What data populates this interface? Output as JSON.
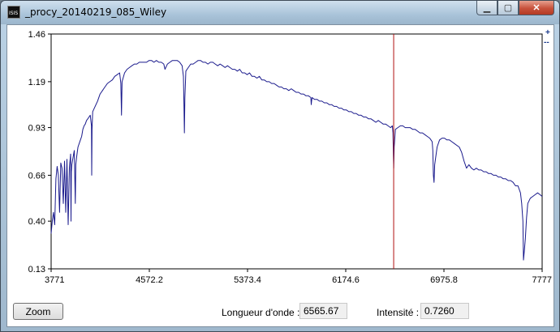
{
  "window": {
    "title": "_procy_20140219_085_Wiley",
    "icon_text": "ISIS",
    "icon": "isis-app-icon",
    "minimize_glyph": "▁",
    "maximize_glyph": "▢",
    "close_glyph": "✕"
  },
  "corner_buttons": {
    "plus": "+",
    "minus": "--"
  },
  "chart_data": {
    "type": "line",
    "xlabel": "",
    "ylabel": "",
    "xlim": [
      3771,
      7777
    ],
    "ylim": [
      0.13,
      1.46
    ],
    "x_ticks": [
      "3771",
      "4572.2",
      "5373.4",
      "6174.6",
      "6975.8",
      "7777"
    ],
    "y_ticks": [
      "1.46",
      "1.19",
      "0.93",
      "0.66",
      "0.40",
      "0.13"
    ],
    "series": [
      {
        "color": "#1a1a8c",
        "x": [
          3771,
          3780,
          3790,
          3800,
          3810,
          3820,
          3830,
          3840,
          3850,
          3860,
          3870,
          3880,
          3890,
          3900,
          3910,
          3920,
          3930,
          3933,
          3936,
          3940,
          3950,
          3960,
          3965,
          3968,
          3972,
          3980,
          3990,
          4000,
          4010,
          4020,
          4030,
          4040,
          4050,
          4060,
          4070,
          4080,
          4090,
          4100,
          4102,
          4105,
          4110,
          4130,
          4150,
          4170,
          4190,
          4210,
          4230,
          4250,
          4270,
          4290,
          4310,
          4330,
          4340,
          4345,
          4350,
          4370,
          4390,
          4410,
          4430,
          4450,
          4470,
          4490,
          4510,
          4530,
          4550,
          4570,
          4590,
          4610,
          4630,
          4650,
          4670,
          4690,
          4700,
          4720,
          4740,
          4760,
          4780,
          4800,
          4820,
          4840,
          4850,
          4855,
          4858,
          4862,
          4870,
          4890,
          4910,
          4930,
          4950,
          4970,
          4990,
          5010,
          5030,
          5050,
          5070,
          5090,
          5110,
          5130,
          5150,
          5170,
          5190,
          5210,
          5230,
          5250,
          5270,
          5290,
          5310,
          5330,
          5350,
          5370,
          5390,
          5410,
          5430,
          5450,
          5470,
          5490,
          5510,
          5530,
          5550,
          5570,
          5590,
          5610,
          5630,
          5650,
          5670,
          5690,
          5710,
          5730,
          5750,
          5770,
          5790,
          5810,
          5830,
          5850,
          5870,
          5890,
          5893,
          5896,
          5900,
          5920,
          5940,
          5960,
          5980,
          6000,
          6020,
          6040,
          6060,
          6080,
          6100,
          6120,
          6140,
          6160,
          6180,
          6200,
          6220,
          6240,
          6260,
          6280,
          6300,
          6320,
          6340,
          6360,
          6380,
          6400,
          6420,
          6440,
          6460,
          6480,
          6500,
          6520,
          6540,
          6555,
          6560,
          6563,
          6566,
          6570,
          6580,
          6600,
          6620,
          6640,
          6660,
          6680,
          6700,
          6720,
          6740,
          6760,
          6780,
          6800,
          6820,
          6840,
          6860,
          6870,
          6880,
          6885,
          6890,
          6895,
          6900,
          6920,
          6940,
          6960,
          6980,
          7000,
          7020,
          7040,
          7060,
          7080,
          7100,
          7120,
          7140,
          7160,
          7180,
          7200,
          7220,
          7240,
          7260,
          7280,
          7300,
          7320,
          7340,
          7360,
          7380,
          7400,
          7420,
          7440,
          7460,
          7480,
          7500,
          7520,
          7540,
          7560,
          7580,
          7600,
          7610,
          7620,
          7625,
          7630,
          7640,
          7650,
          7660,
          7680,
          7700,
          7720,
          7740,
          7760,
          7777
        ],
        "y": [
          0.33,
          0.4,
          0.45,
          0.38,
          0.64,
          0.71,
          0.66,
          0.45,
          0.73,
          0.7,
          0.5,
          0.74,
          0.45,
          0.75,
          0.38,
          0.7,
          0.78,
          0.4,
          0.68,
          0.72,
          0.76,
          0.8,
          0.62,
          0.5,
          0.72,
          0.77,
          0.82,
          0.84,
          0.86,
          0.88,
          0.92,
          0.94,
          0.95,
          0.97,
          0.98,
          0.99,
          1.0,
          0.94,
          0.66,
          0.92,
          1.02,
          1.05,
          1.08,
          1.12,
          1.14,
          1.16,
          1.18,
          1.19,
          1.2,
          1.22,
          1.23,
          1.24,
          1.18,
          1.0,
          1.19,
          1.24,
          1.26,
          1.27,
          1.28,
          1.29,
          1.29,
          1.3,
          1.3,
          1.3,
          1.3,
          1.31,
          1.31,
          1.3,
          1.31,
          1.3,
          1.3,
          1.29,
          1.26,
          1.29,
          1.3,
          1.31,
          1.31,
          1.31,
          1.3,
          1.28,
          1.22,
          1.05,
          0.9,
          1.1,
          1.25,
          1.27,
          1.29,
          1.29,
          1.3,
          1.31,
          1.31,
          1.3,
          1.3,
          1.29,
          1.3,
          1.3,
          1.29,
          1.28,
          1.29,
          1.28,
          1.27,
          1.28,
          1.27,
          1.26,
          1.26,
          1.25,
          1.26,
          1.24,
          1.24,
          1.23,
          1.24,
          1.22,
          1.22,
          1.21,
          1.22,
          1.2,
          1.2,
          1.19,
          1.19,
          1.18,
          1.18,
          1.17,
          1.16,
          1.16,
          1.15,
          1.15,
          1.14,
          1.15,
          1.14,
          1.13,
          1.13,
          1.12,
          1.12,
          1.11,
          1.11,
          1.1,
          1.06,
          1.08,
          1.1,
          1.09,
          1.09,
          1.08,
          1.08,
          1.07,
          1.07,
          1.06,
          1.06,
          1.05,
          1.05,
          1.04,
          1.04,
          1.03,
          1.03,
          1.02,
          1.02,
          1.01,
          1.01,
          1.0,
          1.0,
          0.99,
          0.99,
          0.98,
          0.98,
          0.97,
          0.96,
          0.97,
          0.96,
          0.95,
          0.95,
          0.94,
          0.93,
          0.94,
          0.9,
          0.78,
          0.7,
          0.82,
          0.92,
          0.93,
          0.94,
          0.94,
          0.93,
          0.93,
          0.93,
          0.92,
          0.92,
          0.91,
          0.9,
          0.9,
          0.89,
          0.88,
          0.87,
          0.86,
          0.85,
          0.8,
          0.66,
          0.62,
          0.72,
          0.82,
          0.86,
          0.87,
          0.87,
          0.86,
          0.86,
          0.85,
          0.84,
          0.83,
          0.82,
          0.79,
          0.74,
          0.7,
          0.72,
          0.7,
          0.69,
          0.7,
          0.69,
          0.69,
          0.68,
          0.68,
          0.67,
          0.67,
          0.66,
          0.66,
          0.65,
          0.65,
          0.64,
          0.64,
          0.63,
          0.63,
          0.62,
          0.6,
          0.6,
          0.56,
          0.5,
          0.4,
          0.18,
          0.22,
          0.3,
          0.42,
          0.5,
          0.53,
          0.54,
          0.55,
          0.56,
          0.55,
          0.54
        ]
      }
    ],
    "marker": {
      "x": 6565.67,
      "color": "#b01010"
    },
    "grid": false
  },
  "footer": {
    "zoom_label": "Zoom",
    "wavelength_label": "Longueur d'onde :",
    "wavelength_value": "6565.67",
    "intensity_label": "Intensité :",
    "intensity_value": "0.7260"
  }
}
